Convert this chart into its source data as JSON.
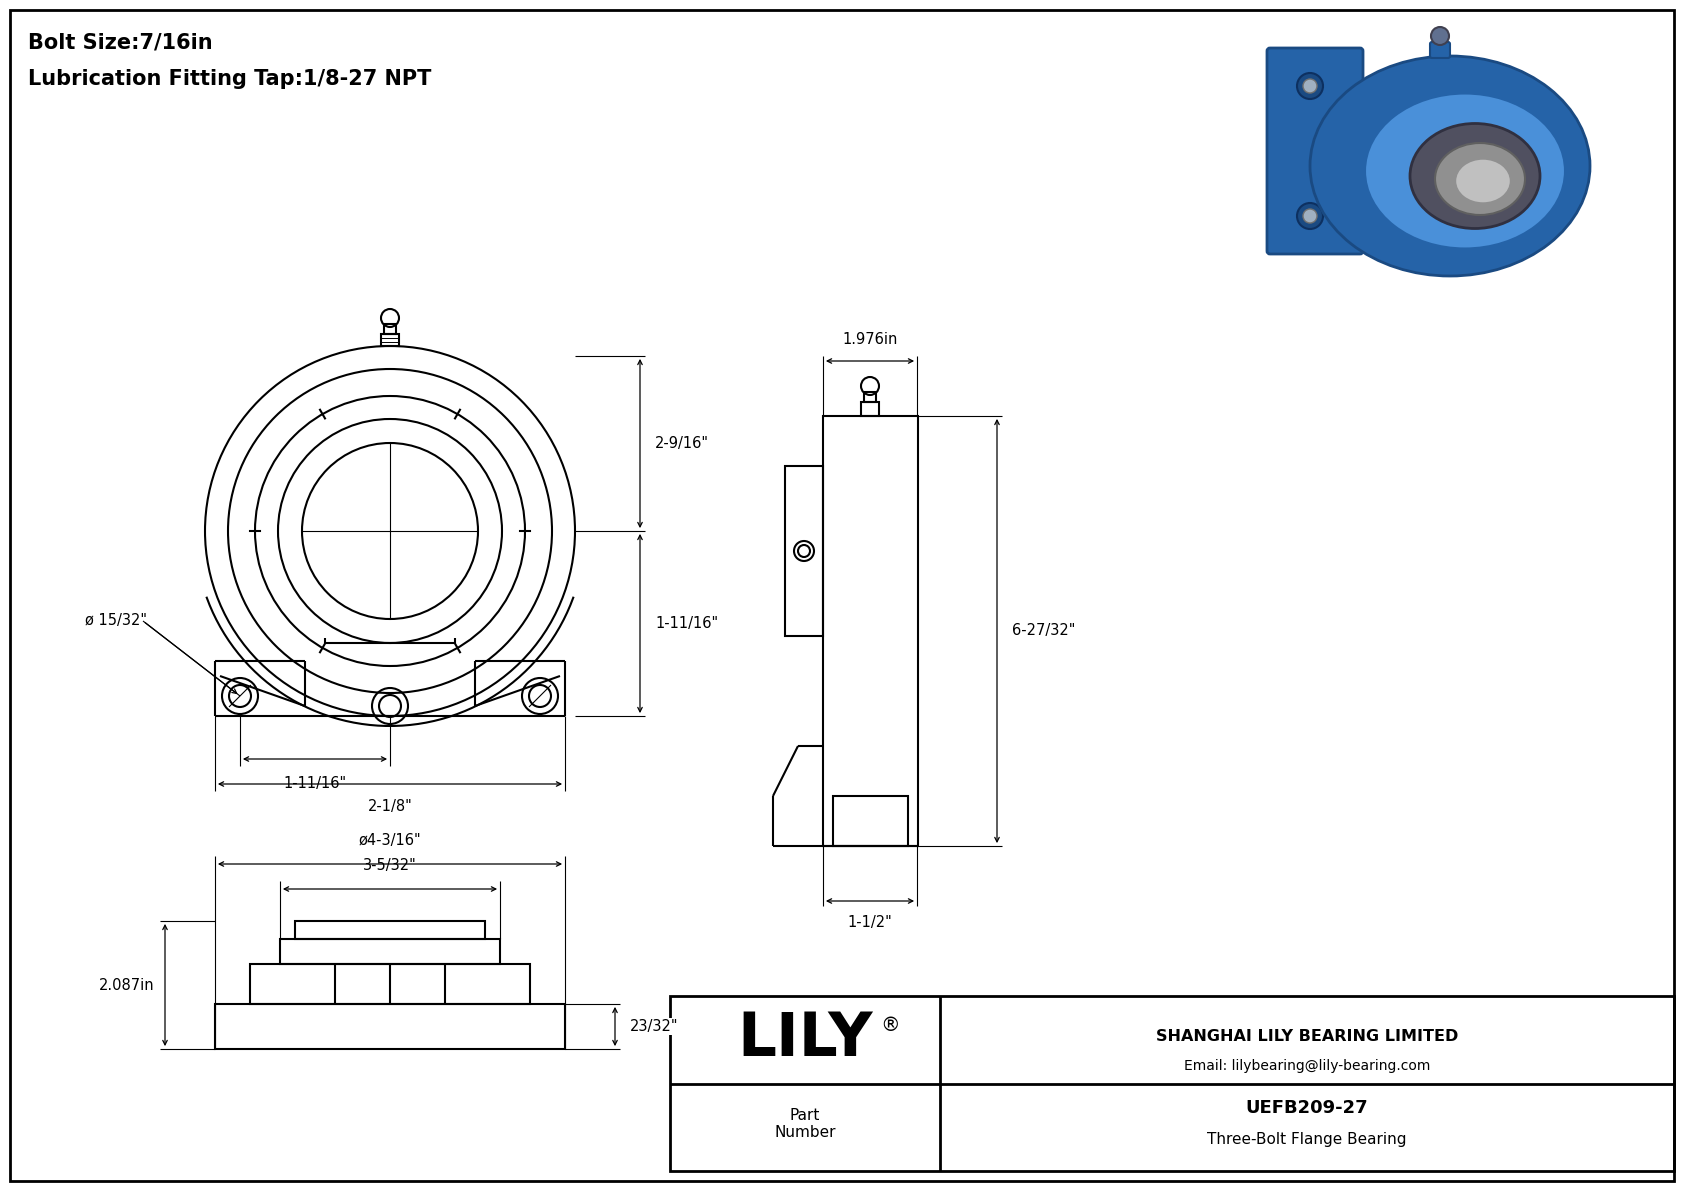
{
  "bg_color": "#ffffff",
  "line_color": "#000000",
  "title_line1": "Bolt Size:7/16in",
  "title_line2": "Lubrication Fitting Tap:1/8-27 NPT",
  "title_fontsize": 15,
  "dim_fontsize": 10.5,
  "company_name": "SHANGHAI LILY BEARING LIMITED",
  "company_email": "Email: lilybearing@lily-bearing.com",
  "part_label": "Part\nNumber",
  "part_number": "UEFB209-27",
  "part_desc": "Three-Bolt Flange Bearing",
  "lily_text": "LILY",
  "dims": {
    "d1": "ø 15/32\"",
    "d2": "2-9/16\"",
    "d3": "1-11/16\"",
    "d4": "1-11/16\"",
    "d5": "2-1/8\"",
    "d6": "23/32\"",
    "d7": "2.087in",
    "d8": "3-5/32\"",
    "d9": "ø4-3/16\"",
    "d10": "1.976in",
    "d11": "6-27/32\"",
    "d12": "1-1/2\""
  }
}
